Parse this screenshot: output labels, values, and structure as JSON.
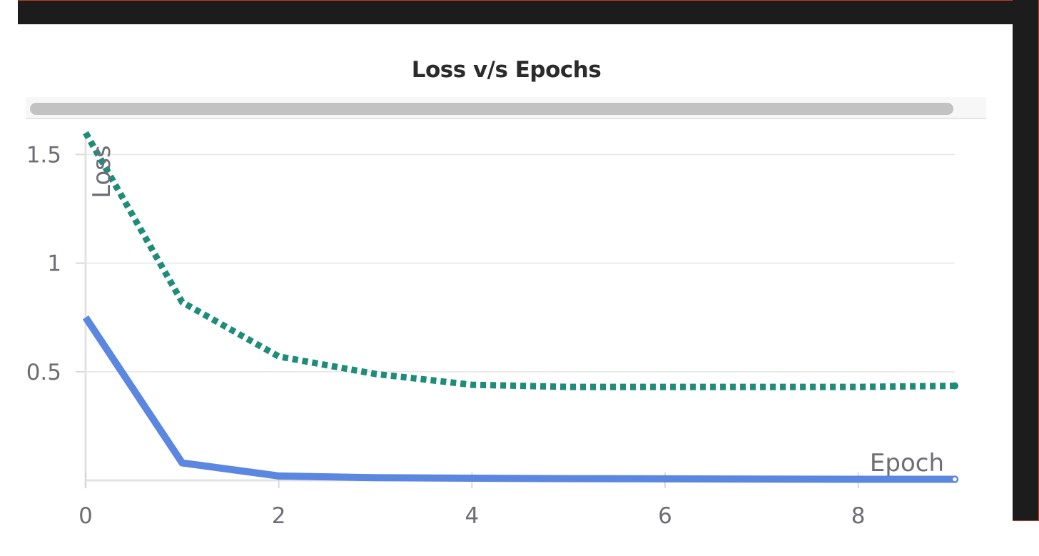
{
  "chart_data": {
    "type": "line",
    "title": "Loss v/s Epochs",
    "xlabel": "Epoch",
    "ylabel": "Loss",
    "xlim": [
      0,
      9
    ],
    "ylim": [
      0,
      1.6
    ],
    "x_ticks": [
      "0",
      "2",
      "4",
      "6",
      "8"
    ],
    "y_ticks": [
      "0.5",
      "1",
      "1.5"
    ],
    "grid": true,
    "series": [
      {
        "style": "solid",
        "color": "#5b87e0",
        "x": [
          0,
          1,
          2,
          3,
          4,
          5,
          6,
          7,
          8,
          9
        ],
        "values": [
          0.75,
          0.08,
          0.02,
          0.012,
          0.01,
          0.008,
          0.007,
          0.006,
          0.005,
          0.005
        ]
      },
      {
        "style": "dotted",
        "color": "#1e8c7a",
        "x": [
          0,
          1,
          2,
          3,
          4,
          5,
          6,
          7,
          8,
          9
        ],
        "values": [
          1.6,
          0.82,
          0.57,
          0.49,
          0.44,
          0.43,
          0.43,
          0.43,
          0.43,
          0.435
        ]
      }
    ]
  }
}
